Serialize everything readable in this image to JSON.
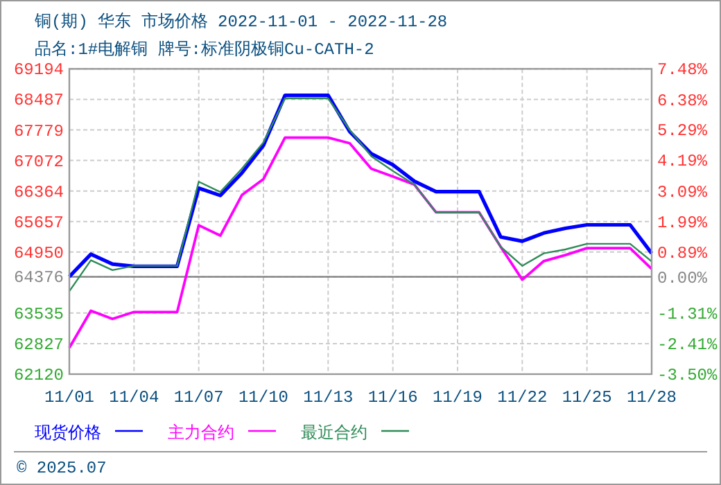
{
  "chart_data": {
    "type": "line",
    "title": "铜(期) 华东 市场价格 2022-11-01 - 2022-11-28",
    "subtitle": "品名:1#电解铜 牌号:标准阴极铜Cu-CATH-2",
    "x": [
      "2022-11-01",
      "2022-11-02",
      "2022-11-03",
      "2022-11-04",
      "2022-11-05",
      "2022-11-06",
      "2022-11-07",
      "2022-11-08",
      "2022-11-09",
      "2022-11-10",
      "2022-11-11",
      "2022-11-12",
      "2022-11-13",
      "2022-11-14",
      "2022-11-15",
      "2022-11-16",
      "2022-11-17",
      "2022-11-18",
      "2022-11-19",
      "2022-11-20",
      "2022-11-21",
      "2022-11-22",
      "2022-11-23",
      "2022-11-24",
      "2022-11-25",
      "2022-11-26",
      "2022-11-27",
      "2022-11-28"
    ],
    "series": [
      {
        "name": "现货价格",
        "color": "#0000ff",
        "values": [
          64380,
          64900,
          64670,
          64620,
          64620,
          64620,
          66430,
          66260,
          66780,
          67420,
          68580,
          68580,
          68580,
          67740,
          67230,
          66970,
          66590,
          66350,
          66350,
          66350,
          65300,
          65200,
          65390,
          65500,
          65580,
          65580,
          65580,
          64920
        ]
      },
      {
        "name": "主力合约",
        "color": "#ff00ff",
        "values": [
          62730,
          63590,
          63400,
          63560,
          63560,
          63560,
          65570,
          65330,
          66270,
          66640,
          67600,
          67600,
          67600,
          67470,
          66880,
          66700,
          66510,
          65870,
          65870,
          65870,
          65070,
          64310,
          64740,
          64880,
          65040,
          65040,
          65040,
          64560
        ]
      },
      {
        "name": "最近合约",
        "color": "#2e8b57",
        "values": [
          64040,
          64760,
          64530,
          64630,
          64630,
          64630,
          66580,
          66340,
          66880,
          67490,
          68510,
          68510,
          68510,
          67780,
          67170,
          66830,
          66510,
          65870,
          65870,
          65870,
          65070,
          64630,
          64920,
          65010,
          65140,
          65140,
          65140,
          64730
        ]
      }
    ],
    "xlim": [
      "2022-11-01",
      "2022-11-28"
    ],
    "xticks": [
      {
        "value": "2022-11-01",
        "label": "11/01"
      },
      {
        "value": "2022-11-04",
        "label": "11/04"
      },
      {
        "value": "2022-11-07",
        "label": "11/07"
      },
      {
        "value": "2022-11-10",
        "label": "11/10"
      },
      {
        "value": "2022-11-13",
        "label": "11/13"
      },
      {
        "value": "2022-11-16",
        "label": "11/16"
      },
      {
        "value": "2022-11-19",
        "label": "11/19"
      },
      {
        "value": "2022-11-22",
        "label": "11/22"
      },
      {
        "value": "2022-11-25",
        "label": "11/25"
      },
      {
        "value": "2022-11-28",
        "label": "11/28"
      }
    ],
    "ylim": [
      62120,
      69194
    ],
    "yticks": [
      62120,
      62827,
      63535,
      64376,
      64950,
      65657,
      66364,
      67072,
      67779,
      68487,
      69194
    ],
    "y2lim": [
      -3.5,
      7.48
    ],
    "y2ticks": [
      {
        "value": -3.5,
        "label": "-3.50%"
      },
      {
        "value": -2.41,
        "label": "-2.41%"
      },
      {
        "value": -1.31,
        "label": "-1.31%"
      },
      {
        "value": 0,
        "label": "0.00%"
      },
      {
        "value": 0.89,
        "label": "0.89%"
      },
      {
        "value": 1.99,
        "label": "1.99%"
      },
      {
        "value": 3.09,
        "label": "3.09%"
      },
      {
        "value": 4.19,
        "label": "4.19%"
      },
      {
        "value": 5.29,
        "label": "5.29%"
      },
      {
        "value": 6.38,
        "label": "6.38%"
      },
      {
        "value": 7.48,
        "label": "7.48%"
      }
    ],
    "ref_lines": [
      {
        "axis": "y2",
        "value": 0,
        "color": "#888888"
      }
    ],
    "grid": true,
    "legend": "bottom",
    "annotations": [
      "© 2025.07"
    ]
  }
}
